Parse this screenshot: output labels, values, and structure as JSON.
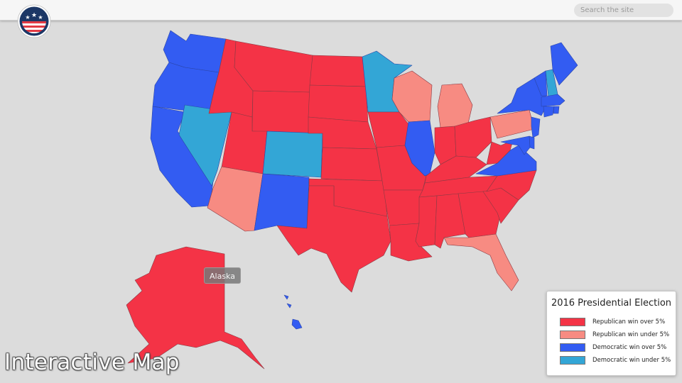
{
  "header": {
    "search_placeholder": "Search the site"
  },
  "page": {
    "title": "Interactive Map"
  },
  "tooltip": {
    "label": "Alaska"
  },
  "legend": {
    "title": "2016 Presidential Election",
    "items": [
      {
        "label": "Republican win over 5%",
        "color": "#f43346"
      },
      {
        "label": "Republican win under 5%",
        "color": "#f78b82"
      },
      {
        "label": "Democratic win over 5%",
        "color": "#335cf2"
      },
      {
        "label": "Democratic win under 5%",
        "color": "#33a6d6"
      }
    ]
  },
  "colors": {
    "background": "#dcdcdc",
    "rep_over": "#f43346",
    "rep_under": "#f78b82",
    "dem_over": "#335cf2",
    "dem_under": "#33a6d6"
  },
  "states": {
    "washington": "dem_over",
    "oregon": "dem_over",
    "california": "dem_over",
    "nevada": "dem_under",
    "idaho": "rep_over",
    "montana": "rep_over",
    "wyoming": "rep_over",
    "utah": "rep_over",
    "arizona": "rep_under",
    "colorado": "dem_under",
    "new-mexico": "dem_over",
    "north-dakota": "rep_over",
    "south-dakota": "rep_over",
    "nebraska": "rep_over",
    "kansas": "rep_over",
    "oklahoma": "rep_over",
    "texas": "rep_over",
    "minnesota": "dem_under",
    "iowa": "rep_over",
    "missouri": "rep_over",
    "arkansas": "rep_over",
    "louisiana": "rep_over",
    "wisconsin": "rep_under",
    "illinois": "dem_over",
    "michigan": "rep_under",
    "indiana": "rep_over",
    "ohio": "rep_over",
    "kentucky": "rep_over",
    "tennessee": "rep_over",
    "mississippi": "rep_over",
    "alabama": "rep_over",
    "georgia": "rep_over",
    "florida": "rep_under",
    "south-carolina": "rep_over",
    "north-carolina": "rep_over",
    "virginia": "dem_over",
    "west-virginia": "rep_over",
    "pennsylvania": "rep_under",
    "new-york": "dem_over",
    "vermont": "dem_over",
    "new-hampshire": "dem_under",
    "maine": "dem_over",
    "massachusetts": "dem_over",
    "connecticut": "dem_over",
    "rhode-island": "dem_over",
    "new-jersey": "dem_over",
    "delaware": "dem_over",
    "maryland": "dem_over",
    "alaska": "rep_over",
    "hawaii": "dem_over"
  }
}
